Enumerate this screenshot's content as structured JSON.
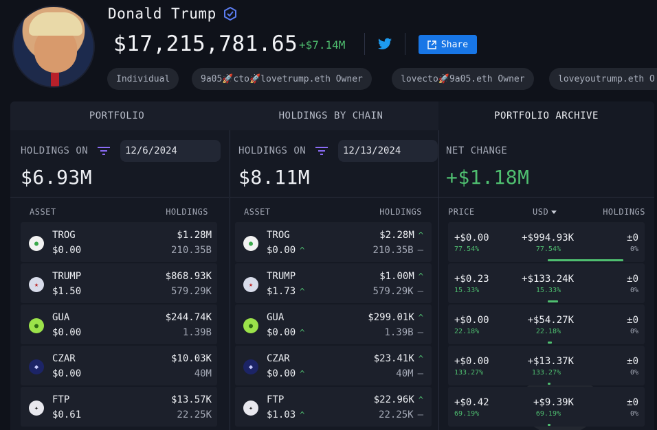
{
  "profile": {
    "name": "Donald Trump",
    "total_value": "$17,215,781.65",
    "total_change": "+$7.14M",
    "share_label": "Share",
    "tags": [
      "Individual",
      "9a05🚀cto🚀lovetrump.eth Owner",
      "lovecto🚀9a05.eth Owner",
      "loveyoutrump.eth O"
    ]
  },
  "tabs": [
    "PORTFOLIO",
    "HOLDINGS BY CHAIN",
    "PORTFOLIO ARCHIVE"
  ],
  "snapshot1": {
    "label": "HOLDINGS ON",
    "date": "12/6/2024",
    "value": "$6.93M",
    "col_asset": "ASSET",
    "col_holdings": "HOLDINGS",
    "rows": [
      {
        "symbol": "TROG",
        "price": "$0.00",
        "value": "$1.28M",
        "amount": "210.35B"
      },
      {
        "symbol": "TRUMP",
        "price": "$1.50",
        "value": "$868.93K",
        "amount": "579.29K"
      },
      {
        "symbol": "GUA",
        "price": "$0.00",
        "value": "$244.74K",
        "amount": "1.39B"
      },
      {
        "symbol": "CZAR",
        "price": "$0.00",
        "value": "$10.03K",
        "amount": "40M"
      },
      {
        "symbol": "FTP",
        "price": "$0.61",
        "value": "$13.57K",
        "amount": "22.25K"
      }
    ]
  },
  "snapshot2": {
    "label": "HOLDINGS ON",
    "date": "12/13/2024",
    "value": "$8.11M",
    "col_asset": "ASSET",
    "col_holdings": "HOLDINGS",
    "rows": [
      {
        "symbol": "TROG",
        "price": "$0.00",
        "value": "$2.28M",
        "amount": "210.35B"
      },
      {
        "symbol": "TRUMP",
        "price": "$1.73",
        "value": "$1.00M",
        "amount": "579.29K"
      },
      {
        "symbol": "GUA",
        "price": "$0.00",
        "value": "$299.01K",
        "amount": "1.39B"
      },
      {
        "symbol": "CZAR",
        "price": "$0.00",
        "value": "$23.41K",
        "amount": "40M"
      },
      {
        "symbol": "FTP",
        "price": "$1.03",
        "value": "$22.96K",
        "amount": "22.25K"
      }
    ],
    "up_arrow": "^",
    "dash": "—"
  },
  "net_change": {
    "label": "NET CHANGE",
    "value": "+$1.18M",
    "col_price": "PRICE",
    "col_usd": "USD",
    "col_holdings": "HOLDINGS",
    "rows": [
      {
        "price": "+$0.00",
        "price_pct": "77.54%",
        "usd": "+$994.93K",
        "usd_pct": "77.54%",
        "usd_share": 1.0,
        "holdings": "±0",
        "holdings_pct": "0%"
      },
      {
        "price": "+$0.23",
        "price_pct": "15.33%",
        "usd": "+$133.24K",
        "usd_pct": "15.33%",
        "usd_share": 0.134,
        "holdings": "±0",
        "holdings_pct": "0%"
      },
      {
        "price": "+$0.00",
        "price_pct": "22.18%",
        "usd": "+$54.27K",
        "usd_pct": "22.18%",
        "usd_share": 0.055,
        "holdings": "±0",
        "holdings_pct": "0%"
      },
      {
        "price": "+$0.00",
        "price_pct": "133.27%",
        "usd": "+$13.37K",
        "usd_pct": "133.27%",
        "usd_share": 0.013,
        "holdings": "±0",
        "holdings_pct": "0%"
      },
      {
        "price": "+$0.42",
        "price_pct": "69.19%",
        "usd": "+$9.39K",
        "usd_pct": "69.19%",
        "usd_share": 0.009,
        "holdings": "±0",
        "holdings_pct": "0%"
      }
    ]
  },
  "colors": {
    "accent": "#1876e6",
    "positive": "#4fbf70",
    "background": "#0f121a",
    "panel": "#151923",
    "row": "#1c202b"
  },
  "icons": {
    "verified": "verified-badge-icon",
    "twitter": "twitter-icon",
    "share": "share-icon",
    "filter": "filter-icon",
    "sort": "sort-down-icon"
  }
}
